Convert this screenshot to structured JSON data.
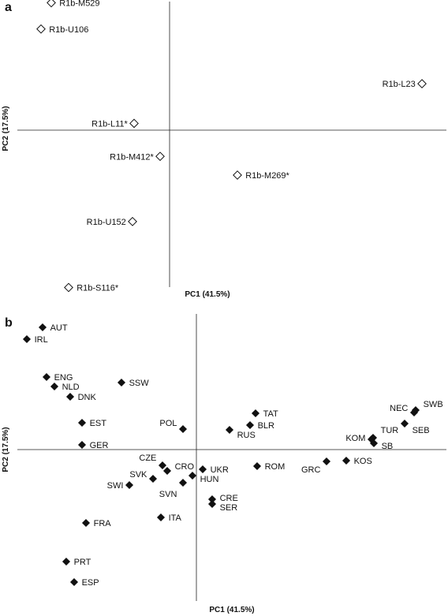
{
  "chart_data": [
    {
      "type": "scatter",
      "panel": "a",
      "xlabel": "PC1 (41.5%)",
      "ylabel": "PC2 (17.5%)",
      "marker": "open-diamond",
      "points": [
        {
          "label": "R1b-M529",
          "x": -1.5,
          "y": 1.7
        },
        {
          "label": "R1b-U106",
          "x": -1.63,
          "y": 1.35
        },
        {
          "label": "R1b-L23",
          "x": 3.2,
          "y": 0.62
        },
        {
          "label": "R1b-L11*",
          "x": -0.45,
          "y": 0.09
        },
        {
          "label": "R1b-M412*",
          "x": -0.12,
          "y": -0.35
        },
        {
          "label": "R1b-M269*",
          "x": 0.86,
          "y": -0.6
        },
        {
          "label": "R1b-U152",
          "x": -0.47,
          "y": -1.22
        },
        {
          "label": "R1b-S116*",
          "x": -1.28,
          "y": -2.1
        }
      ]
    },
    {
      "type": "scatter",
      "panel": "b",
      "xlabel": "PC1 (41.5%)",
      "ylabel": "PC2 (17.5%)",
      "marker": "filled-diamond",
      "points": [
        {
          "label": "AUT",
          "x": -1.95,
          "y": 1.55
        },
        {
          "label": "IRL",
          "x": -2.15,
          "y": 1.4
        },
        {
          "label": "ENG",
          "x": -1.9,
          "y": 0.92
        },
        {
          "label": "NLD",
          "x": -1.8,
          "y": 0.8
        },
        {
          "label": "DNK",
          "x": -1.6,
          "y": 0.67
        },
        {
          "label": "SSW",
          "x": -0.95,
          "y": 0.85
        },
        {
          "label": "EST",
          "x": -1.45,
          "y": 0.34
        },
        {
          "label": "GER",
          "x": -1.45,
          "y": 0.06
        },
        {
          "label": "POL",
          "x": -0.17,
          "y": 0.26
        },
        {
          "label": "TAT",
          "x": 0.75,
          "y": 0.46
        },
        {
          "label": "BLR",
          "x": 0.68,
          "y": 0.31
        },
        {
          "label": "RUS",
          "x": 0.42,
          "y": 0.25
        },
        {
          "label": "NEC",
          "x": 2.76,
          "y": 0.47
        },
        {
          "label": "SWB",
          "x": 2.78,
          "y": 0.5
        },
        {
          "label": "SEB",
          "x": 2.64,
          "y": 0.33
        },
        {
          "label": "TUR",
          "x": 2.24,
          "y": 0.15
        },
        {
          "label": "KOM",
          "x": 2.22,
          "y": 0.13
        },
        {
          "label": "SB",
          "x": 2.25,
          "y": 0.08
        },
        {
          "label": "CZE",
          "x": -0.43,
          "y": -0.2
        },
        {
          "label": "CRO",
          "x": -0.37,
          "y": -0.27
        },
        {
          "label": "UKR",
          "x": 0.08,
          "y": -0.25
        },
        {
          "label": "ROM",
          "x": 0.77,
          "y": -0.21
        },
        {
          "label": "GRC",
          "x": 1.65,
          "y": -0.15
        },
        {
          "label": "KOS",
          "x": 1.9,
          "y": -0.14
        },
        {
          "label": "SVK",
          "x": -0.55,
          "y": -0.37
        },
        {
          "label": "HUN",
          "x": -0.05,
          "y": -0.33
        },
        {
          "label": "SVN",
          "x": -0.17,
          "y": -0.42
        },
        {
          "label": "SWI",
          "x": -0.85,
          "y": -0.45
        },
        {
          "label": "CRE",
          "x": 0.2,
          "y": -0.63
        },
        {
          "label": "SER",
          "x": 0.2,
          "y": -0.69
        },
        {
          "label": "ITA",
          "x": -0.45,
          "y": -0.86
        },
        {
          "label": "FRA",
          "x": -1.4,
          "y": -0.93
        },
        {
          "label": "PRT",
          "x": -1.65,
          "y": -1.42
        },
        {
          "label": "ESP",
          "x": -1.55,
          "y": -1.68
        }
      ]
    }
  ],
  "panels": {
    "a": {
      "letter": "a",
      "xlabel": "PC1 (41.5%)",
      "ylabel": "PC2 (17.5%)"
    },
    "b": {
      "letter": "b",
      "xlabel": "PC1 (41.5%)",
      "ylabel": "PC2 (17.5%)"
    }
  }
}
